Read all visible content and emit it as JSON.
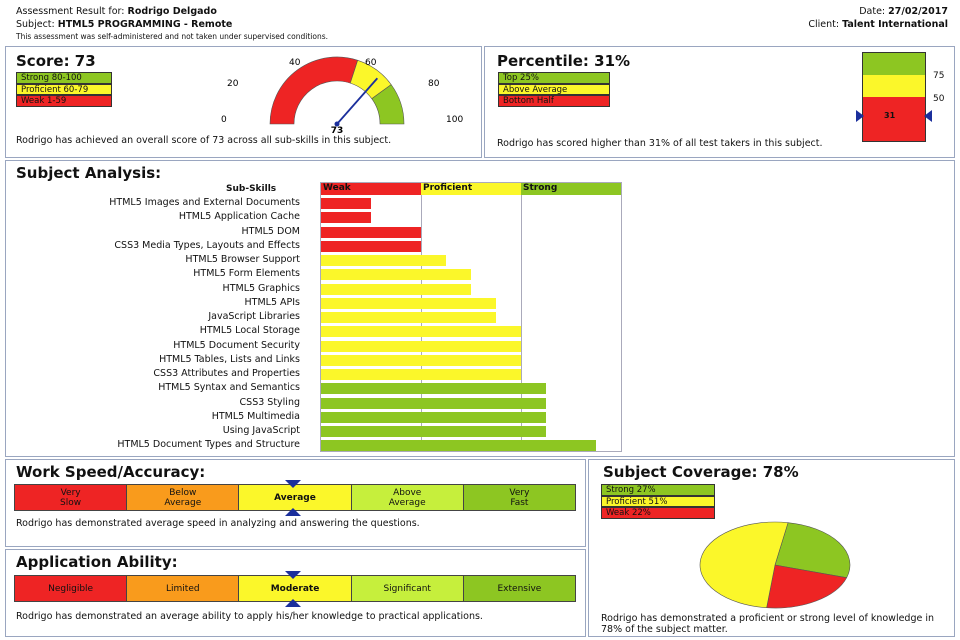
{
  "header": {
    "assessment_label": "Assessment Result for:",
    "candidate": "Rodrigo Delgado",
    "subject_label": "Subject:",
    "subject": "HTML5 PROGRAMMING - Remote",
    "note": "This assessment was self-administered and not taken under supervised conditions.",
    "date_label": "Date:",
    "date": "27/02/2017",
    "client_label": "Client:",
    "client": "Talent International"
  },
  "score": {
    "title": "Score: 73",
    "value": "73",
    "legend": [
      "Strong 80-100",
      "Proficient 60-79",
      "Weak 1-59"
    ],
    "gauge_labels": [
      "0",
      "20",
      "40",
      "60",
      "80",
      "100"
    ],
    "text": "Rodrigo has achieved an overall score of 73 across all sub-skills in this subject."
  },
  "percentile": {
    "title": "Percentile: 31%",
    "legend": [
      "Top 25%",
      "Above Average",
      "Bottom Half"
    ],
    "marks": [
      "75",
      "50"
    ],
    "value": "31",
    "text": "Rodrigo has scored higher than 31% of all test takers in this subject."
  },
  "analysis": {
    "title": "Subject Analysis:",
    "sub_skills_label": "Sub-Skills",
    "columns": [
      "Weak",
      "Proficient",
      "Strong"
    ],
    "skills": [
      {
        "name": "HTML5 Images and External Documents",
        "score": 20
      },
      {
        "name": "HTML5 Application Cache",
        "score": 20
      },
      {
        "name": "HTML5 DOM",
        "score": 40
      },
      {
        "name": "CSS3 Media Types, Layouts and  Effects",
        "score": 40
      },
      {
        "name": "HTML5 Browser Support",
        "score": 50
      },
      {
        "name": "HTML5  Form Elements",
        "score": 60
      },
      {
        "name": "HTML5 Graphics",
        "score": 60
      },
      {
        "name": "HTML5 APIs",
        "score": 70
      },
      {
        "name": "JavaScript Libraries",
        "score": 70
      },
      {
        "name": "HTML5 Local Storage",
        "score": 80
      },
      {
        "name": "HTML5 Document Security",
        "score": 80
      },
      {
        "name": "HTML5 Tables, Lists and Links",
        "score": 80
      },
      {
        "name": "CSS3 Attributes and Properties",
        "score": 80
      },
      {
        "name": "HTML5 Syntax and Semantics",
        "score": 90
      },
      {
        "name": "CSS3 Styling",
        "score": 90
      },
      {
        "name": "HTML5 Multimedia",
        "score": 90
      },
      {
        "name": "Using JavaScript",
        "score": 90
      },
      {
        "name": "HTML5 Document Types and Structure",
        "score": 110
      }
    ]
  },
  "speed": {
    "title": "Work Speed/Accuracy:",
    "levels": [
      "Very\nSlow",
      "Below\nAverage",
      "Average",
      "Above\nAverage",
      "Very\nFast"
    ],
    "selected": "Average",
    "text": "Rodrigo has demonstrated average speed in analyzing and answering the questions."
  },
  "ability": {
    "title": "Application Ability:",
    "levels": [
      "Negligible",
      "Limited",
      "Moderate",
      "Significant",
      "Extensive"
    ],
    "selected": "Moderate",
    "text": "Rodrigo has demonstrated an average ability to apply his/her knowledge to practical applications."
  },
  "coverage": {
    "title": "Subject Coverage: 78%",
    "legend": [
      "Strong 27%",
      "Proficient 51%",
      "Weak 22%"
    ],
    "text": "Rodrigo has demonstrated a proficient or strong level of knowledge in 78% of the subject matter."
  },
  "colors": {
    "strong": "#8dc622",
    "proficient": "#fbf72a",
    "weak": "#ee2424"
  },
  "chart_data": {
    "type": "pie",
    "categories": [
      "Strong",
      "Proficient",
      "Weak"
    ],
    "values": [
      27,
      51,
      22
    ],
    "title": "Subject Coverage: 78%"
  }
}
